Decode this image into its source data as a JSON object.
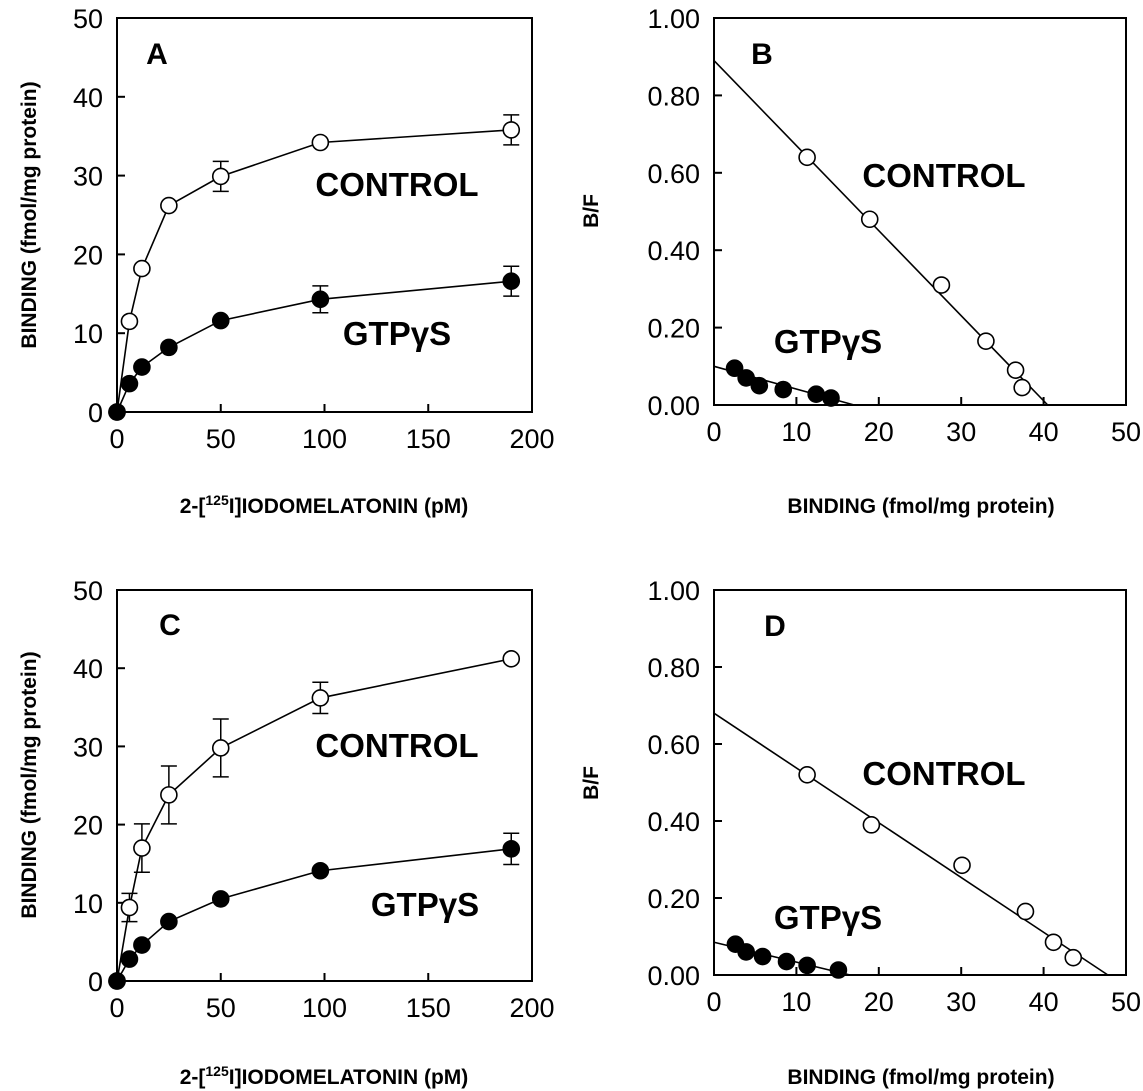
{
  "chart_data": [
    {
      "panel": "A",
      "type": "scatter",
      "xlabel": "2-[125I]IODOMELATONIN (pM)",
      "xlabel_parts": {
        "pre": "2-[",
        "sup": "125",
        "post": "I]IODOMELATONIN (pM)"
      },
      "ylabel": "BINDING (fmol/mg protein)",
      "xlim": [
        0,
        200
      ],
      "ylim": [
        0,
        50
      ],
      "xticks": [
        "0",
        "50",
        "100",
        "150",
        "200"
      ],
      "yticks": [
        "0",
        "10",
        "20",
        "30",
        "40",
        "50"
      ],
      "grid": false,
      "series": [
        {
          "name": "CONTROL",
          "marker": "open-circle",
          "connect": true,
          "x": [
            0,
            6,
            12,
            25,
            50,
            98,
            190
          ],
          "y": [
            0,
            11.5,
            18.2,
            26.2,
            29.9,
            34.2,
            35.8
          ],
          "err": [
            0,
            0,
            0,
            0,
            1.9,
            0,
            1.9
          ]
        },
        {
          "name": "GTPγS",
          "marker": "filled-circle",
          "connect": true,
          "x": [
            0,
            6,
            12,
            25,
            50,
            98,
            190
          ],
          "y": [
            0,
            3.6,
            5.7,
            8.2,
            11.6,
            14.3,
            16.6
          ],
          "err": [
            0,
            0,
            0,
            0,
            0,
            1.7,
            1.9
          ]
        }
      ]
    },
    {
      "panel": "B",
      "type": "scatter",
      "xlabel": "BINDING (fmol/mg protein)",
      "ylabel": "B/F",
      "xlim": [
        0,
        50
      ],
      "ylim": [
        0,
        1.0
      ],
      "xticks": [
        "0",
        "10",
        "20",
        "30",
        "40",
        "50"
      ],
      "yticks": [
        "0.00",
        "0.20",
        "0.40",
        "0.60",
        "0.80",
        "1.00"
      ],
      "grid": false,
      "series": [
        {
          "name": "CONTROL",
          "marker": "open-circle",
          "x": [
            11.3,
            18.9,
            27.6,
            33.0,
            36.6,
            37.4
          ],
          "y": [
            0.64,
            0.48,
            0.31,
            0.165,
            0.09,
            0.045
          ],
          "fit": [
            [
              0,
              0.89
            ],
            [
              40.5,
              0
            ]
          ]
        },
        {
          "name": "GTPγS",
          "marker": "filled-circle",
          "x": [
            2.5,
            3.9,
            5.5,
            8.4,
            12.4,
            14.2
          ],
          "y": [
            0.095,
            0.07,
            0.05,
            0.04,
            0.028,
            0.018
          ],
          "fit": [
            [
              0,
              0.1
            ],
            [
              17,
              0
            ]
          ]
        }
      ]
    },
    {
      "panel": "C",
      "type": "scatter",
      "xlabel": "2-[125I]IODOMELATONIN (pM)",
      "xlabel_parts": {
        "pre": "2-[",
        "sup": "125",
        "post": "I]IODOMELATONIN (pM)"
      },
      "ylabel": "BINDING (fmol/mg protein)",
      "xlim": [
        0,
        200
      ],
      "ylim": [
        0,
        50
      ],
      "xticks": [
        "0",
        "50",
        "100",
        "150",
        "200"
      ],
      "yticks": [
        "0",
        "10",
        "20",
        "30",
        "40",
        "50"
      ],
      "grid": false,
      "series": [
        {
          "name": "CONTROL",
          "marker": "open-circle",
          "connect": true,
          "x": [
            0,
            6,
            12,
            25,
            50,
            98,
            190
          ],
          "y": [
            0,
            9.4,
            17.0,
            23.8,
            29.8,
            36.2,
            41.2
          ],
          "err": [
            0,
            1.8,
            3.1,
            3.7,
            3.7,
            2.0,
            0
          ]
        },
        {
          "name": "GTPγS",
          "marker": "filled-circle",
          "connect": true,
          "x": [
            0,
            6,
            12,
            25,
            50,
            98,
            190
          ],
          "y": [
            0,
            2.8,
            4.6,
            7.6,
            10.5,
            14.1,
            16.9
          ],
          "err": [
            0,
            0,
            0,
            0,
            0,
            0,
            2.0
          ]
        }
      ]
    },
    {
      "panel": "D",
      "type": "scatter",
      "xlabel": "BINDING (fmol/mg protein)",
      "ylabel": "B/F",
      "xlim": [
        0,
        50
      ],
      "ylim": [
        0,
        1.0
      ],
      "xticks": [
        "0",
        "10",
        "20",
        "30",
        "40",
        "50"
      ],
      "yticks": [
        "0.00",
        "0.20",
        "0.40",
        "0.60",
        "0.80",
        "1.00"
      ],
      "grid": false,
      "series": [
        {
          "name": "CONTROL",
          "marker": "open-circle",
          "x": [
            11.3,
            19.1,
            30.1,
            37.8,
            41.2,
            43.6
          ],
          "y": [
            0.52,
            0.39,
            0.285,
            0.165,
            0.085,
            0.045
          ],
          "fit": [
            [
              0,
              0.68
            ],
            [
              47.8,
              0
            ]
          ]
        },
        {
          "name": "GTPγS",
          "marker": "filled-circle",
          "x": [
            2.6,
            3.9,
            5.9,
            8.8,
            11.3,
            15.1
          ],
          "y": [
            0.08,
            0.06,
            0.048,
            0.035,
            0.025,
            0.013
          ],
          "fit": [
            [
              0,
              0.085
            ],
            [
              16.5,
              0
            ]
          ]
        }
      ]
    }
  ]
}
